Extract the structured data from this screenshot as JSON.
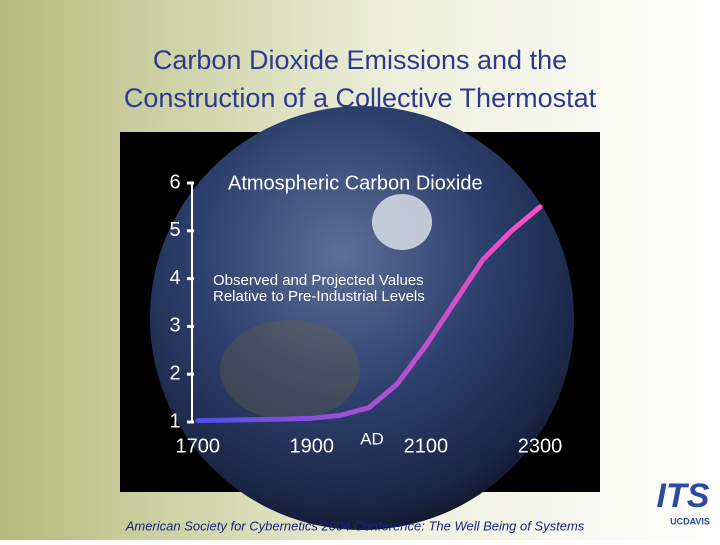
{
  "slide": {
    "title_lines": [
      "Carbon Dioxide Emissions and the",
      "Construction of a Collective Thermostat"
    ],
    "footer": "American Society for Cybernetics 2004 Conference: The Well Being of Systems",
    "logo": {
      "mark": "ITS",
      "sub": "UCDAVIS"
    }
  },
  "chart_data": {
    "type": "line",
    "title": "Atmospheric  Carbon  Dioxide",
    "annotations": [
      "Observed  and  Projected  Values",
      "Relative  to  Pre-Industrial  Levels"
    ],
    "x_axis_note": "AD",
    "x": [
      1700,
      1750,
      1800,
      1850,
      1900,
      1950,
      2000,
      2050,
      2100,
      2150,
      2200,
      2250,
      2300
    ],
    "values": [
      1.03,
      1.04,
      1.05,
      1.06,
      1.08,
      1.14,
      1.3,
      1.8,
      2.6,
      3.5,
      4.4,
      5.0,
      5.5
    ],
    "gradient_colors": [
      "#4f4fe8",
      "#ff4fc4"
    ],
    "xlim": [
      1690,
      2300
    ],
    "xticks": [
      1700,
      1900,
      2100,
      2300
    ],
    "ylim": [
      1,
      6
    ],
    "yticks": [
      1,
      2,
      3,
      4,
      5,
      6
    ]
  }
}
